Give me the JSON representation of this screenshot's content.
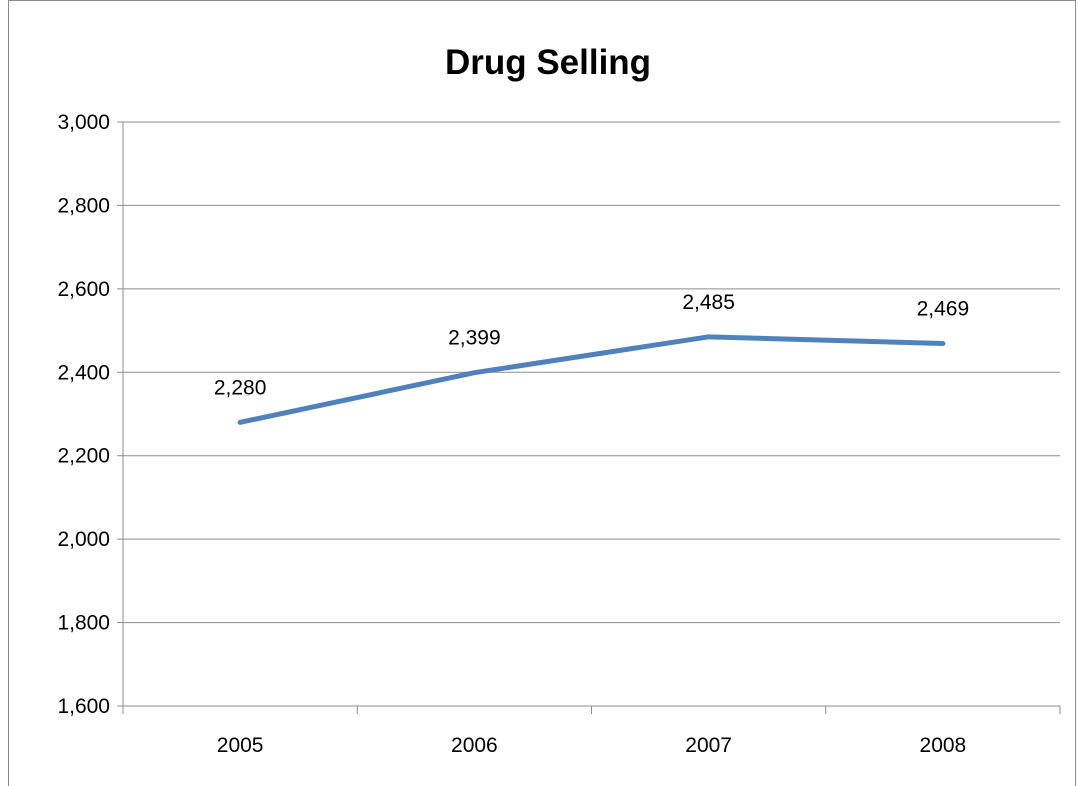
{
  "chart_data": {
    "type": "line",
    "title": "Drug Selling",
    "xlabel": "",
    "ylabel": "",
    "categories": [
      "2005",
      "2006",
      "2007",
      "2008"
    ],
    "series": [
      {
        "values": [
          2280,
          2399,
          2485,
          2469
        ],
        "data_labels": [
          "2,280",
          "2,399",
          "2,485",
          "2,469"
        ],
        "color": "#4f81bd"
      }
    ],
    "ylim": [
      1600,
      3000
    ],
    "y_ticks": [
      1600,
      1800,
      2000,
      2200,
      2400,
      2600,
      2800,
      3000
    ],
    "y_tick_labels": [
      "1,600",
      "1,800",
      "2,000",
      "2,200",
      "2,400",
      "2,600",
      "2,800",
      "3,000"
    ],
    "grid": true,
    "legend": "none"
  }
}
